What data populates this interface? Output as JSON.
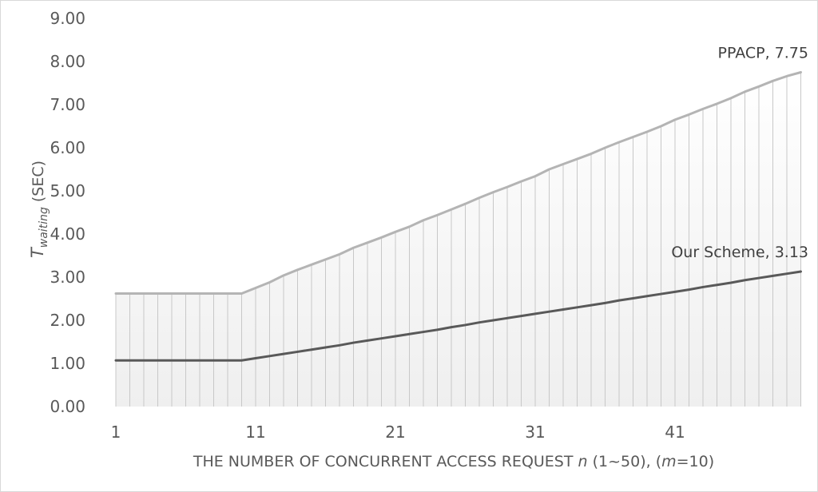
{
  "chart_data": {
    "type": "area",
    "title": "",
    "xlabel": {
      "prefix": "THE NUMBER OF CONCURRENT ACCESS REQUEST ",
      "var": "n",
      "mid": " (1~50), (",
      "var2": "m",
      "suffix": "=10)"
    },
    "ylabel": {
      "prefix": "T",
      "sub": "waiting",
      "suffix": " (SEC)"
    },
    "ylim": [
      0,
      9
    ],
    "yticks": [
      "0.00",
      "1.00",
      "2.00",
      "3.00",
      "4.00",
      "5.00",
      "6.00",
      "7.00",
      "8.00",
      "9.00"
    ],
    "xticks": [
      "1",
      "11",
      "21",
      "31",
      "41"
    ],
    "x": [
      1,
      2,
      3,
      4,
      5,
      6,
      7,
      8,
      9,
      10,
      11,
      12,
      13,
      14,
      15,
      16,
      17,
      18,
      19,
      20,
      21,
      22,
      23,
      24,
      25,
      26,
      27,
      28,
      29,
      30,
      31,
      32,
      33,
      34,
      35,
      36,
      37,
      38,
      39,
      40,
      41,
      42,
      43,
      44,
      45,
      46,
      47,
      48,
      49,
      50
    ],
    "grid": false,
    "series": [
      {
        "name": "PPACP",
        "color": "#b4b4b4",
        "values": [
          2.62,
          2.62,
          2.62,
          2.62,
          2.62,
          2.62,
          2.62,
          2.62,
          2.62,
          2.62,
          2.75,
          2.88,
          3.04,
          3.17,
          3.29,
          3.41,
          3.53,
          3.68,
          3.8,
          3.92,
          4.05,
          4.17,
          4.32,
          4.44,
          4.57,
          4.7,
          4.84,
          4.97,
          5.09,
          5.22,
          5.34,
          5.5,
          5.62,
          5.74,
          5.86,
          6.0,
          6.13,
          6.25,
          6.37,
          6.5,
          6.65,
          6.77,
          6.9,
          7.02,
          7.15,
          7.3,
          7.42,
          7.55,
          7.66,
          7.75
        ],
        "annotation": "PPACP, 7.75"
      },
      {
        "name": "Our Scheme",
        "color": "#595959",
        "values": [
          1.07,
          1.07,
          1.07,
          1.07,
          1.07,
          1.07,
          1.07,
          1.07,
          1.07,
          1.07,
          1.12,
          1.17,
          1.22,
          1.27,
          1.32,
          1.37,
          1.42,
          1.48,
          1.53,
          1.58,
          1.63,
          1.68,
          1.73,
          1.78,
          1.84,
          1.89,
          1.95,
          2.0,
          2.05,
          2.1,
          2.15,
          2.2,
          2.25,
          2.3,
          2.35,
          2.4,
          2.46,
          2.51,
          2.56,
          2.61,
          2.66,
          2.71,
          2.77,
          2.82,
          2.87,
          2.93,
          2.98,
          3.03,
          3.08,
          3.13
        ],
        "annotation": "Our Scheme, 3.13"
      }
    ]
  }
}
